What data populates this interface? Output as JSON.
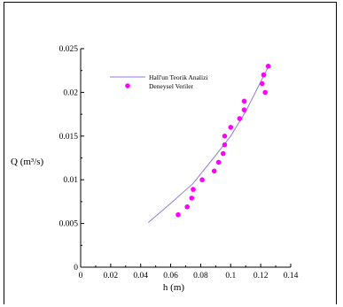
{
  "chart_data": {
    "type": "scatter",
    "xlabel": "h (m)",
    "ylabel": "Q (m³/s)",
    "xlim": [
      0,
      0.14
    ],
    "ylim": [
      0,
      0.025
    ],
    "x_ticks": [
      "0",
      "0.02",
      "0.04",
      "0.06",
      "0.08",
      "0.1",
      "0.12",
      "0.14"
    ],
    "y_ticks": [
      "0",
      "0.005",
      "0.01",
      "0.015",
      "0.02",
      "0.025"
    ],
    "grid": false,
    "legend_position": "top-left",
    "series": [
      {
        "name": "Hall'un Teorik Analizi",
        "kind": "line",
        "color": "#8c7ee0",
        "points": [
          [
            0.045,
            0.0051
          ],
          [
            0.06,
            0.0073
          ],
          [
            0.075,
            0.0096
          ],
          [
            0.09,
            0.0128
          ],
          [
            0.1,
            0.015
          ],
          [
            0.11,
            0.0178
          ],
          [
            0.12,
            0.0212
          ],
          [
            0.125,
            0.0229
          ]
        ]
      },
      {
        "name": "Deneysel Veriler",
        "kind": "scatter",
        "color": "#ff00ff",
        "points": [
          [
            0.065,
            0.006
          ],
          [
            0.071,
            0.0069
          ],
          [
            0.074,
            0.0079
          ],
          [
            0.075,
            0.0089
          ],
          [
            0.081,
            0.01
          ],
          [
            0.089,
            0.011
          ],
          [
            0.092,
            0.012
          ],
          [
            0.095,
            0.013
          ],
          [
            0.096,
            0.014
          ],
          [
            0.096,
            0.015
          ],
          [
            0.1,
            0.016
          ],
          [
            0.106,
            0.017
          ],
          [
            0.109,
            0.018
          ],
          [
            0.109,
            0.019
          ],
          [
            0.121,
            0.021
          ],
          [
            0.122,
            0.022
          ],
          [
            0.123,
            0.02
          ],
          [
            0.125,
            0.023
          ]
        ]
      }
    ]
  }
}
